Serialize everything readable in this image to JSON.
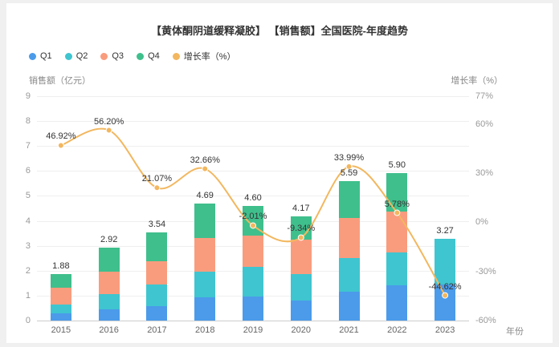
{
  "header": {
    "title": "【黄体酮阴道缓释凝胶】 【销售额】全国医院-年度趋势"
  },
  "legend": {
    "items": [
      {
        "label": "Q1",
        "color": "#4B9BEA"
      },
      {
        "label": "Q2",
        "color": "#3FC5CF"
      },
      {
        "label": "Q3",
        "color": "#F99C7E"
      },
      {
        "label": "Q4",
        "color": "#3FBF8C"
      },
      {
        "label": "增长率（%）",
        "color": "#F2B75F"
      }
    ]
  },
  "chart_data": {
    "type": "stacked-bar+line",
    "title": "【黄体酮阴道缓释凝胶】 【销售额】全国医院-年度趋势",
    "categories": [
      "2015",
      "2016",
      "2017",
      "2018",
      "2019",
      "2020",
      "2021",
      "2022",
      "2023"
    ],
    "series": [
      {
        "name": "Q1",
        "type": "bar",
        "stack": true,
        "color": "#4B9BEA",
        "values": [
          0.3,
          0.45,
          0.58,
          0.92,
          0.98,
          0.8,
          1.15,
          1.4,
          1.45
        ]
      },
      {
        "name": "Q2",
        "type": "bar",
        "stack": true,
        "color": "#3FC5CF",
        "values": [
          0.35,
          0.6,
          0.88,
          1.05,
          1.17,
          1.05,
          1.35,
          1.33,
          1.82
        ]
      },
      {
        "name": "Q3",
        "type": "bar",
        "stack": true,
        "color": "#F99C7E",
        "values": [
          0.68,
          0.9,
          0.93,
          1.35,
          1.25,
          1.4,
          1.62,
          1.65,
          0
        ]
      },
      {
        "name": "Q4",
        "type": "bar",
        "stack": true,
        "color": "#3FBF8C",
        "values": [
          0.55,
          0.97,
          1.15,
          1.37,
          1.2,
          0.92,
          1.47,
          1.52,
          0
        ]
      },
      {
        "name": "增长率（%）",
        "type": "line",
        "axis": "right",
        "color": "#F2B75F",
        "values": [
          46.92,
          56.2,
          21.07,
          32.66,
          -2.01,
          -9.34,
          33.99,
          5.78,
          -44.62
        ]
      }
    ],
    "totals": [
      1.88,
      2.92,
      3.54,
      4.69,
      4.6,
      4.17,
      5.59,
      5.9,
      3.27
    ],
    "total_labels": [
      "1.88",
      "2.92",
      "3.54",
      "4.69",
      "4.60",
      "4.17",
      "5.59",
      "5.90",
      "3.27"
    ],
    "line_labels": [
      "46.92%",
      "56.20%",
      "21.07%",
      "32.66%",
      "-2.01%",
      "-9.34%",
      "33.99%",
      "5.78%",
      "-44.62%"
    ],
    "left_axis": {
      "title": "销售额（亿元）",
      "min": 0,
      "max": 9,
      "interval": 1,
      "tick_labels": [
        "9",
        "8",
        "7",
        "6",
        "5",
        "4",
        "3",
        "2",
        "1",
        "0"
      ],
      "tick_values": [
        9,
        8,
        7,
        6,
        5,
        4,
        3,
        2,
        1,
        0
      ]
    },
    "right_axis": {
      "title": "增长率（%）",
      "min": -60,
      "max": 77,
      "tick_labels": [
        "77%",
        "60%",
        "30%",
        "0%",
        "-30%",
        "-60%"
      ],
      "tick_values": [
        77,
        60,
        30,
        0,
        -30,
        -60
      ]
    },
    "x_title": "年份",
    "grid": true,
    "legend_position": "top-left"
  }
}
